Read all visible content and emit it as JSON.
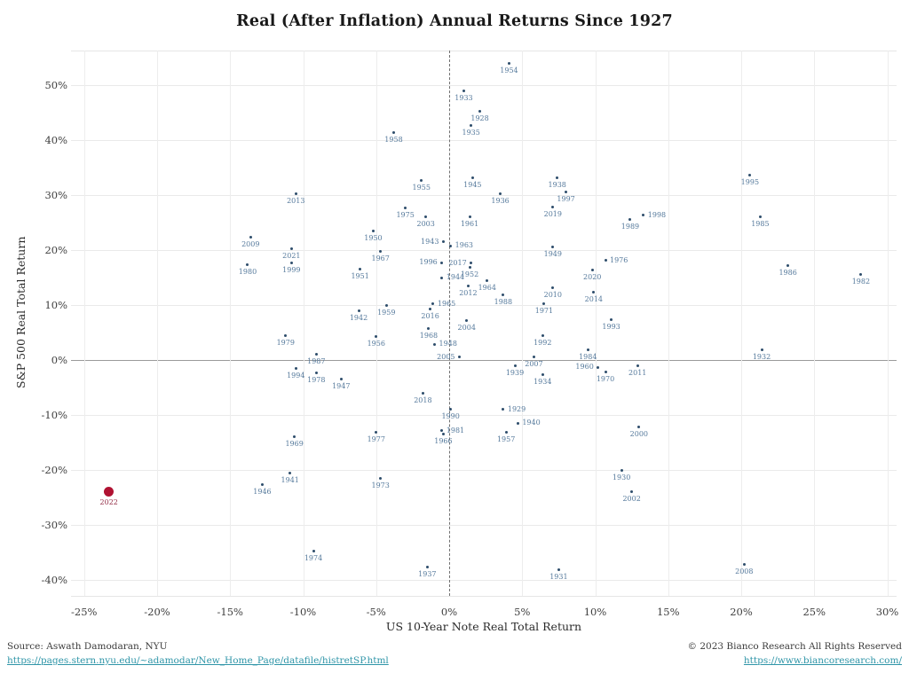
{
  "title": "Real (After Inflation) Annual Returns Since 1927",
  "footer": {
    "source_text": "Source: Aswath Damodaran, NYU",
    "source_link": "https://pages.stern.nyu.edu/~adamodar/New_Home_Page/datafile/histretSP.html",
    "copyright_text": "© 2023 Bianco Research All Rights Reserved",
    "copyright_link": "https://www.biancoresearch.com/"
  },
  "colors": {
    "point": "#2e4d6b",
    "point_label": "#567a9c",
    "highlight_point": "#b01232",
    "highlight_label": "#953049",
    "grid": "#eaeaea",
    "zero_line": "#9b9b9b",
    "link": "#2f95a8"
  },
  "chart_data": {
    "type": "scatter",
    "title": "Real (After Inflation) Annual Returns Since 1927",
    "xlabel": "US 10-Year Note Real Total Return",
    "ylabel": "S&P 500 Real Total Return",
    "xlim": [
      -28,
      31
    ],
    "ylim": [
      -43,
      57
    ],
    "grid": true,
    "x_ticks": [
      {
        "value": -25,
        "label": "-25%"
      },
      {
        "value": -20,
        "label": "-20%"
      },
      {
        "value": -15,
        "label": "-15%"
      },
      {
        "value": -10,
        "label": "-10%"
      },
      {
        "value": -5,
        "label": "-5%"
      },
      {
        "value": 0,
        "label": "0%"
      },
      {
        "value": 5,
        "label": "5%"
      },
      {
        "value": 10,
        "label": "10%"
      },
      {
        "value": 15,
        "label": "15%"
      },
      {
        "value": 20,
        "label": "20%"
      },
      {
        "value": 25,
        "label": "25%"
      },
      {
        "value": 30,
        "label": "30%"
      }
    ],
    "y_ticks": [
      {
        "value": 50,
        "label": "50%"
      },
      {
        "value": 40,
        "label": "40%"
      },
      {
        "value": 30,
        "label": "30%"
      },
      {
        "value": 20,
        "label": "20%"
      },
      {
        "value": 10,
        "label": "10%"
      },
      {
        "value": 0,
        "label": "0%"
      },
      {
        "value": -10,
        "label": "-10%"
      },
      {
        "value": -20,
        "label": "-20%"
      },
      {
        "value": -30,
        "label": "-30%"
      },
      {
        "value": -40,
        "label": "-40%"
      }
    ],
    "highlight_year": "2022",
    "points": [
      {
        "year": "1954",
        "x": 4.1,
        "y": 54.0,
        "lp": "b"
      },
      {
        "year": "1933",
        "x": 1.0,
        "y": 49.0,
        "lp": "b"
      },
      {
        "year": "1928",
        "x": 2.1,
        "y": 45.3,
        "lp": "b"
      },
      {
        "year": "1935",
        "x": 1.5,
        "y": 42.6,
        "lp": "b"
      },
      {
        "year": "1958",
        "x": -3.8,
        "y": 41.3,
        "lp": "b"
      },
      {
        "year": "1995",
        "x": 20.6,
        "y": 33.7,
        "lp": "b"
      },
      {
        "year": "1938",
        "x": 7.4,
        "y": 33.2,
        "lp": "b"
      },
      {
        "year": "1945",
        "x": 1.6,
        "y": 33.1,
        "lp": "b"
      },
      {
        "year": "1955",
        "x": -1.9,
        "y": 32.6,
        "lp": "b"
      },
      {
        "year": "1997",
        "x": 8.0,
        "y": 30.6,
        "lp": "b"
      },
      {
        "year": "2013",
        "x": -10.5,
        "y": 30.3,
        "lp": "b"
      },
      {
        "year": "1936",
        "x": 3.5,
        "y": 30.2,
        "lp": "b"
      },
      {
        "year": "2019",
        "x": 7.1,
        "y": 27.9,
        "lp": "b"
      },
      {
        "year": "1975",
        "x": -3.0,
        "y": 27.6,
        "lp": "b"
      },
      {
        "year": "1998",
        "x": 13.3,
        "y": 26.3,
        "lp": "r"
      },
      {
        "year": "1985",
        "x": 21.3,
        "y": 26.1,
        "lp": "b"
      },
      {
        "year": "2003",
        "x": -1.6,
        "y": 26.1,
        "lp": "b"
      },
      {
        "year": "1961",
        "x": 1.4,
        "y": 26.0,
        "lp": "b"
      },
      {
        "year": "1989",
        "x": 12.4,
        "y": 25.5,
        "lp": "b"
      },
      {
        "year": "1950",
        "x": -5.2,
        "y": 23.4,
        "lp": "b"
      },
      {
        "year": "2009",
        "x": -13.6,
        "y": 22.4,
        "lp": "b"
      },
      {
        "year": "1943",
        "x": -0.4,
        "y": 21.5,
        "lp": "l"
      },
      {
        "year": "1963",
        "x": 0.1,
        "y": 20.8,
        "lp": "r"
      },
      {
        "year": "1949",
        "x": 7.1,
        "y": 20.6,
        "lp": "b"
      },
      {
        "year": "2021",
        "x": -10.8,
        "y": 20.2,
        "lp": "b"
      },
      {
        "year": "1967",
        "x": -4.7,
        "y": 19.8,
        "lp": "b"
      },
      {
        "year": "1976",
        "x": 10.7,
        "y": 18.1,
        "lp": "r"
      },
      {
        "year": "1996",
        "x": -0.5,
        "y": 17.7,
        "lp": "l"
      },
      {
        "year": "2017",
        "x": 1.5,
        "y": 17.6,
        "lp": "l"
      },
      {
        "year": "1999",
        "x": -10.8,
        "y": 17.6,
        "lp": "b"
      },
      {
        "year": "1980",
        "x": -13.8,
        "y": 17.3,
        "lp": "b"
      },
      {
        "year": "1986",
        "x": 23.2,
        "y": 17.1,
        "lp": "b"
      },
      {
        "year": "1952",
        "x": 1.4,
        "y": 16.9,
        "lp": "b"
      },
      {
        "year": "1951",
        "x": -6.1,
        "y": 16.6,
        "lp": "b"
      },
      {
        "year": "2020",
        "x": 9.8,
        "y": 16.3,
        "lp": "b"
      },
      {
        "year": "1982",
        "x": 28.2,
        "y": 15.6,
        "lp": "b"
      },
      {
        "year": "1944",
        "x": -0.5,
        "y": 15.0,
        "lp": "r"
      },
      {
        "year": "1964",
        "x": 2.6,
        "y": 14.4,
        "lp": "b"
      },
      {
        "year": "2012",
        "x": 1.3,
        "y": 13.5,
        "lp": "b"
      },
      {
        "year": "2010",
        "x": 7.1,
        "y": 13.1,
        "lp": "b"
      },
      {
        "year": "2014",
        "x": 9.9,
        "y": 12.3,
        "lp": "b"
      },
      {
        "year": "1988",
        "x": 3.7,
        "y": 11.8,
        "lp": "b"
      },
      {
        "year": "1971",
        "x": 6.5,
        "y": 10.3,
        "lp": "b"
      },
      {
        "year": "1965",
        "x": -1.1,
        "y": 10.2,
        "lp": "r"
      },
      {
        "year": "1959",
        "x": -4.3,
        "y": 10.0,
        "lp": "b"
      },
      {
        "year": "2016",
        "x": -1.3,
        "y": 9.2,
        "lp": "b"
      },
      {
        "year": "1942",
        "x": -6.2,
        "y": 9.0,
        "lp": "b"
      },
      {
        "year": "1993",
        "x": 11.1,
        "y": 7.3,
        "lp": "b"
      },
      {
        "year": "2004",
        "x": 1.2,
        "y": 7.1,
        "lp": "b"
      },
      {
        "year": "1968",
        "x": -1.4,
        "y": 5.8,
        "lp": "b"
      },
      {
        "year": "1979",
        "x": -11.2,
        "y": 4.5,
        "lp": "b"
      },
      {
        "year": "1992",
        "x": 6.4,
        "y": 4.4,
        "lp": "b"
      },
      {
        "year": "1956",
        "x": -5.0,
        "y": 4.2,
        "lp": "b"
      },
      {
        "year": "1948",
        "x": -1.0,
        "y": 2.9,
        "lp": "r"
      },
      {
        "year": "1984",
        "x": 9.5,
        "y": 1.9,
        "lp": "b"
      },
      {
        "year": "1932",
        "x": 21.4,
        "y": 1.8,
        "lp": "b"
      },
      {
        "year": "1987",
        "x": -9.1,
        "y": 1.1,
        "lp": "b"
      },
      {
        "year": "2007",
        "x": 5.8,
        "y": 0.5,
        "lp": "b"
      },
      {
        "year": "2005",
        "x": 0.7,
        "y": 0.5,
        "lp": "l"
      },
      {
        "year": "1939",
        "x": 4.5,
        "y": -1.1,
        "lp": "b"
      },
      {
        "year": "2011",
        "x": 12.9,
        "y": -1.1,
        "lp": "b"
      },
      {
        "year": "1960",
        "x": 10.2,
        "y": -1.3,
        "lp": "l"
      },
      {
        "year": "1994",
        "x": -10.5,
        "y": -1.6,
        "lp": "b"
      },
      {
        "year": "1970",
        "x": 10.7,
        "y": -2.1,
        "lp": "b"
      },
      {
        "year": "1978",
        "x": -9.1,
        "y": -2.3,
        "lp": "b"
      },
      {
        "year": "1934",
        "x": 6.4,
        "y": -2.7,
        "lp": "b"
      },
      {
        "year": "1947",
        "x": -7.4,
        "y": -3.4,
        "lp": "b"
      },
      {
        "year": "2018",
        "x": -1.8,
        "y": -6.1,
        "lp": "b"
      },
      {
        "year": "1990",
        "x": 0.1,
        "y": -8.9,
        "lp": "b"
      },
      {
        "year": "1929",
        "x": 3.7,
        "y": -9.0,
        "lp": "r"
      },
      {
        "year": "1940",
        "x": 4.7,
        "y": -11.5,
        "lp": "r"
      },
      {
        "year": "2000",
        "x": 13.0,
        "y": -12.1,
        "lp": "b"
      },
      {
        "year": "1981",
        "x": -0.5,
        "y": -12.9,
        "lp": "r"
      },
      {
        "year": "1977",
        "x": -5.0,
        "y": -13.1,
        "lp": "b"
      },
      {
        "year": "1957",
        "x": 3.9,
        "y": -13.1,
        "lp": "b"
      },
      {
        "year": "1966",
        "x": -0.4,
        "y": -13.4,
        "lp": "b"
      },
      {
        "year": "1969",
        "x": -10.6,
        "y": -14.0,
        "lp": "b"
      },
      {
        "year": "1930",
        "x": 11.8,
        "y": -20.0,
        "lp": "b"
      },
      {
        "year": "1941",
        "x": -10.9,
        "y": -20.6,
        "lp": "b"
      },
      {
        "year": "1973",
        "x": -4.7,
        "y": -21.5,
        "lp": "b"
      },
      {
        "year": "1946",
        "x": -12.8,
        "y": -22.7,
        "lp": "b"
      },
      {
        "year": "2022",
        "x": -23.3,
        "y": -23.9,
        "lp": "b"
      },
      {
        "year": "2002",
        "x": 12.5,
        "y": -24.0,
        "lp": "b"
      },
      {
        "year": "1974",
        "x": -9.3,
        "y": -34.7,
        "lp": "b"
      },
      {
        "year": "2008",
        "x": 20.2,
        "y": -37.1,
        "lp": "b"
      },
      {
        "year": "1937",
        "x": -1.5,
        "y": -37.6,
        "lp": "b"
      },
      {
        "year": "1931",
        "x": 7.5,
        "y": -38.2,
        "lp": "b"
      }
    ]
  }
}
